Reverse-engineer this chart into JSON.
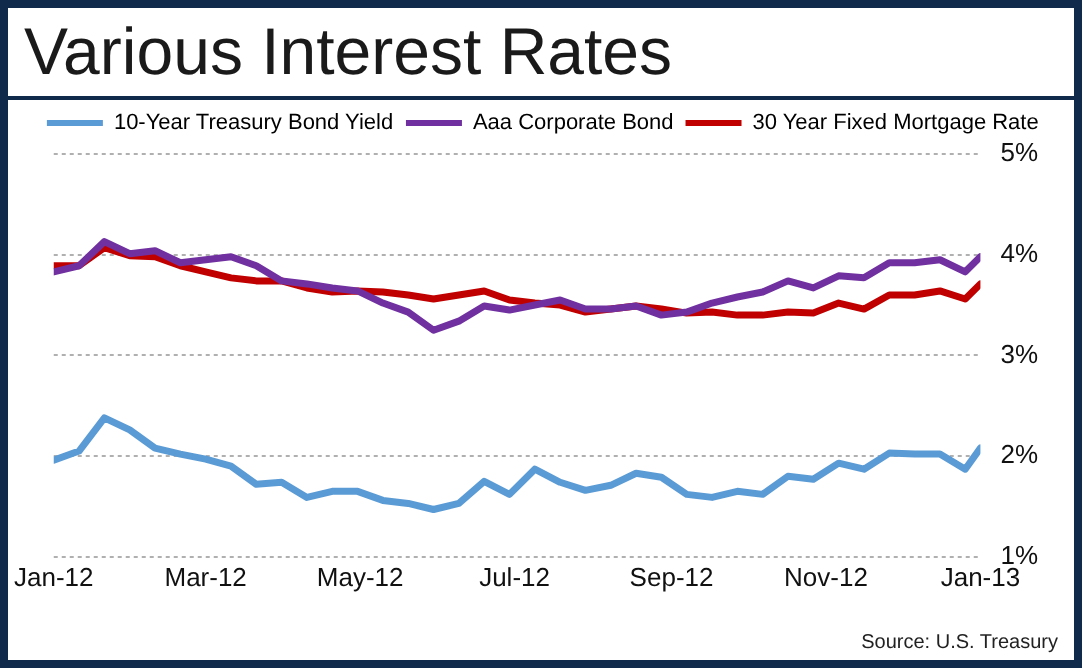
{
  "chart_data": {
    "type": "line",
    "title": "Various Interest Rates",
    "x": [
      "2012-01-01",
      "2012-01-11",
      "2012-01-21",
      "2012-01-31",
      "2012-02-10",
      "2012-02-20",
      "2012-03-01",
      "2012-03-11",
      "2012-03-21",
      "2012-03-31",
      "2012-04-10",
      "2012-04-20",
      "2012-04-30",
      "2012-05-10",
      "2012-05-20",
      "2012-05-30",
      "2012-06-09",
      "2012-06-19",
      "2012-06-29",
      "2012-07-09",
      "2012-07-19",
      "2012-07-29",
      "2012-08-08",
      "2012-08-18",
      "2012-08-28",
      "2012-09-07",
      "2012-09-17",
      "2012-09-27",
      "2012-10-07",
      "2012-10-17",
      "2012-10-27",
      "2012-11-06",
      "2012-11-16",
      "2012-11-26",
      "2012-12-06",
      "2012-12-16",
      "2012-12-26",
      "2013-01-01"
    ],
    "series": [
      {
        "name": "10-Year Treasury Bond Yield",
        "color": "#5b9bd5",
        "values": [
          1.96,
          2.05,
          2.38,
          2.26,
          2.08,
          2.02,
          1.97,
          1.9,
          1.72,
          1.74,
          1.59,
          1.65,
          1.65,
          1.56,
          1.53,
          1.47,
          1.53,
          1.75,
          1.62,
          1.87,
          1.74,
          1.66,
          1.71,
          1.83,
          1.79,
          1.62,
          1.59,
          1.65,
          1.62,
          1.8,
          1.77,
          1.93,
          1.87,
          2.03,
          2.02,
          2.02,
          1.87,
          2.08
        ]
      },
      {
        "name": "Aaa Corporate Bond",
        "color": "#7030a0",
        "values": [
          3.83,
          3.89,
          4.13,
          4.01,
          4.04,
          3.92,
          3.95,
          3.98,
          3.89,
          3.74,
          3.71,
          3.67,
          3.64,
          3.52,
          3.43,
          3.25,
          3.34,
          3.49,
          3.45,
          3.5,
          3.55,
          3.46,
          3.46,
          3.49,
          3.4,
          3.43,
          3.52,
          3.58,
          3.63,
          3.74,
          3.67,
          3.79,
          3.77,
          3.92,
          3.92,
          3.95,
          3.83,
          3.98
        ]
      },
      {
        "name": "30 Year Fixed Mortgage Rate",
        "color": "#c00000",
        "values": [
          3.89,
          3.89,
          4.07,
          3.99,
          3.98,
          3.89,
          3.83,
          3.77,
          3.74,
          3.74,
          3.67,
          3.63,
          3.64,
          3.63,
          3.6,
          3.56,
          3.6,
          3.64,
          3.55,
          3.52,
          3.5,
          3.43,
          3.46,
          3.49,
          3.46,
          3.42,
          3.43,
          3.4,
          3.4,
          3.43,
          3.42,
          3.52,
          3.46,
          3.6,
          3.6,
          3.64,
          3.56,
          3.71
        ]
      }
    ],
    "xlim": [
      "2012-01-01",
      "2013-01-01"
    ],
    "xticks": [
      {
        "value": "2012-01-01",
        "label": "Jan-12"
      },
      {
        "value": "2012-03-01",
        "label": "Mar-12"
      },
      {
        "value": "2012-05-01",
        "label": "May-12"
      },
      {
        "value": "2012-07-01",
        "label": "Jul-12"
      },
      {
        "value": "2012-09-01",
        "label": "Sep-12"
      },
      {
        "value": "2012-11-01",
        "label": "Nov-12"
      },
      {
        "value": "2013-01-01",
        "label": "Jan-13"
      }
    ],
    "ylim": [
      1,
      5
    ],
    "yticks": [
      {
        "value": 1,
        "label": "1%"
      },
      {
        "value": 2,
        "label": "2%"
      },
      {
        "value": 3,
        "label": "3%"
      },
      {
        "value": 4,
        "label": "4%"
      },
      {
        "value": 5,
        "label": "5%"
      }
    ],
    "grid": "y",
    "legend": "top",
    "marker": "none",
    "line_style": "solid",
    "annotations": [
      "Source:  U.S. Treasury"
    ]
  }
}
